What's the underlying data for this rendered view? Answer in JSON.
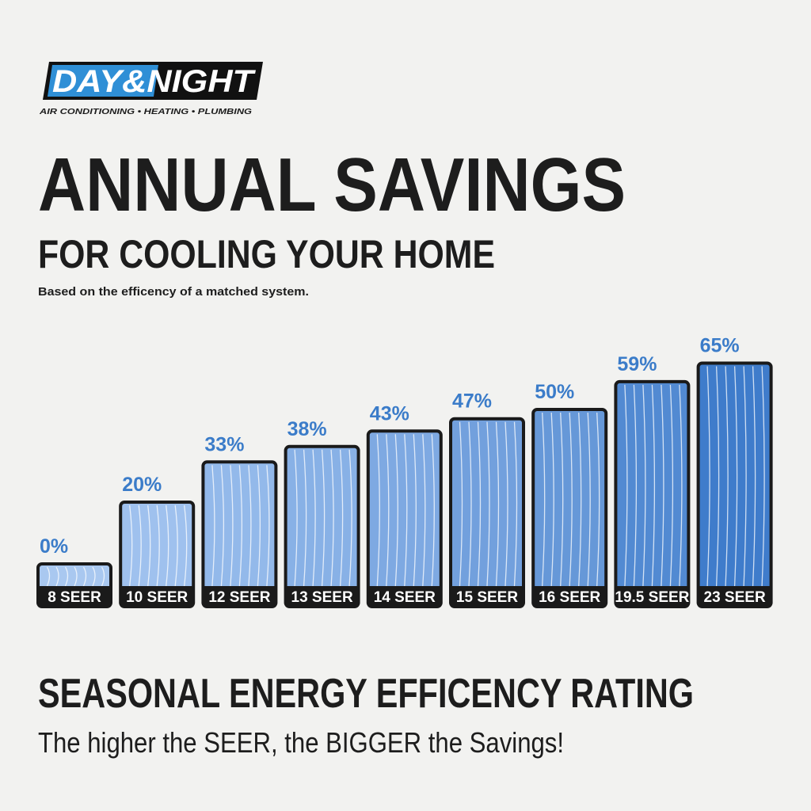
{
  "logo": {
    "name": "DAY&NIGHT",
    "tagline": "AIR CONDITIONING • HEATING • PLUMBING"
  },
  "chart_data": {
    "type": "bar",
    "title": "ANNUAL SAVINGS",
    "subtitle": "FOR COOLING YOUR HOME",
    "note": "Based on the efficency of a matched system.",
    "footer_title": "SEASONAL ENERGY EFFICENCY RATING",
    "footer_text": "The higher the SEER, the BIGGER the Savings!",
    "categories": [
      "8 SEER",
      "10 SEER",
      "12 SEER",
      "13 SEER",
      "14 SEER",
      "15 SEER",
      "16 SEER",
      "19.5 SEER",
      "23 SEER"
    ],
    "values": [
      0,
      20,
      33,
      38,
      43,
      47,
      50,
      59,
      65
    ],
    "value_labels": [
      "0%",
      "20%",
      "33%",
      "38%",
      "43%",
      "47%",
      "50%",
      "59%",
      "65%"
    ],
    "colors": [
      "#a9c8f0",
      "#9fc1ee",
      "#93b9ea",
      "#88b1e6",
      "#7ea9e2",
      "#72a0dd",
      "#6698d8",
      "#528ad2",
      "#3f7ccb"
    ],
    "label_color": "#3b7cc9"
  }
}
